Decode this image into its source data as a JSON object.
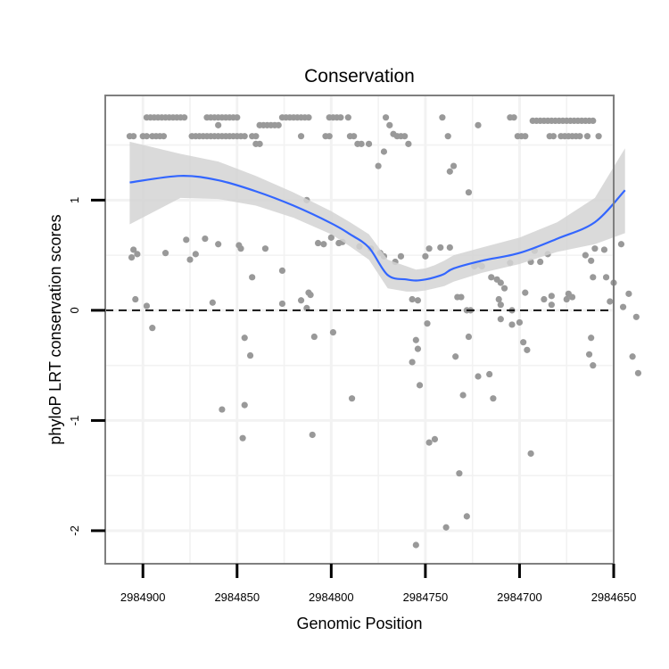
{
  "chart_data": {
    "type": "scatter",
    "title": "Conservation",
    "xlabel": "Genomic Position",
    "ylabel": "phyloP LRT conservation scores",
    "x_reversed": true,
    "xlim": [
      2984920,
      2984650
    ],
    "ylim": [
      -2.3,
      1.95
    ],
    "x_ticks": [
      2984900,
      2984850,
      2984800,
      2984750,
      2984700,
      2984650
    ],
    "y_ticks": [
      -2,
      -1,
      0,
      1
    ],
    "grid": true,
    "reference_line": {
      "y": 0,
      "style": "dashed"
    },
    "colors": {
      "points": "#999999",
      "smooth_line": "#3366FF",
      "ribbon": "#d3d3d3",
      "panel_border": "#7f7f7f",
      "grid": "#f2f2f2"
    },
    "series": [
      {
        "type": "points",
        "points": [
          [
            2984907,
            1.58
          ],
          [
            2984905,
            1.58
          ],
          [
            2984898,
            1.75
          ],
          [
            2984896,
            1.75
          ],
          [
            2984894,
            1.75
          ],
          [
            2984892,
            1.75
          ],
          [
            2984890,
            1.75
          ],
          [
            2984888,
            1.75
          ],
          [
            2984886,
            1.75
          ],
          [
            2984884,
            1.75
          ],
          [
            2984882,
            1.75
          ],
          [
            2984880,
            1.75
          ],
          [
            2984878,
            1.75
          ],
          [
            2984900,
            1.58
          ],
          [
            2984898,
            1.58
          ],
          [
            2984895,
            1.58
          ],
          [
            2984893,
            1.58
          ],
          [
            2984891,
            1.58
          ],
          [
            2984889,
            1.58
          ],
          [
            2984874,
            1.58
          ],
          [
            2984872,
            1.58
          ],
          [
            2984870,
            1.58
          ],
          [
            2984868,
            1.58
          ],
          [
            2984866,
            1.58
          ],
          [
            2984864,
            1.58
          ],
          [
            2984862,
            1.58
          ],
          [
            2984860,
            1.58
          ],
          [
            2984858,
            1.58
          ],
          [
            2984856,
            1.58
          ],
          [
            2984854,
            1.58
          ],
          [
            2984852,
            1.58
          ],
          [
            2984850,
            1.58
          ],
          [
            2984848,
            1.58
          ],
          [
            2984846,
            1.58
          ],
          [
            2984860,
            1.68
          ],
          [
            2984866,
            1.75
          ],
          [
            2984864,
            1.75
          ],
          [
            2984862,
            1.75
          ],
          [
            2984860,
            1.75
          ],
          [
            2984858,
            1.75
          ],
          [
            2984856,
            1.75
          ],
          [
            2984854,
            1.75
          ],
          [
            2984852,
            1.75
          ],
          [
            2984850,
            1.75
          ],
          [
            2984838,
            1.68
          ],
          [
            2984836,
            1.68
          ],
          [
            2984834,
            1.68
          ],
          [
            2984832,
            1.68
          ],
          [
            2984830,
            1.68
          ],
          [
            2984828,
            1.68
          ],
          [
            2984826,
            1.75
          ],
          [
            2984824,
            1.75
          ],
          [
            2984822,
            1.75
          ],
          [
            2984820,
            1.75
          ],
          [
            2984818,
            1.75
          ],
          [
            2984816,
            1.75
          ],
          [
            2984814,
            1.75
          ],
          [
            2984812,
            1.75
          ],
          [
            2984842,
            1.58
          ],
          [
            2984840,
            1.58
          ],
          [
            2984840,
            1.51
          ],
          [
            2984838,
            1.51
          ],
          [
            2984816,
            1.58
          ],
          [
            2984801,
            1.75
          ],
          [
            2984799,
            1.75
          ],
          [
            2984797,
            1.75
          ],
          [
            2984795,
            1.75
          ],
          [
            2984791,
            1.75
          ],
          [
            2984803,
            1.58
          ],
          [
            2984801,
            1.58
          ],
          [
            2984790,
            1.58
          ],
          [
            2984788,
            1.58
          ],
          [
            2984786,
            1.51
          ],
          [
            2984784,
            1.51
          ],
          [
            2984780,
            1.51
          ],
          [
            2984771,
            1.75
          ],
          [
            2984769,
            1.68
          ],
          [
            2984767,
            1.6
          ],
          [
            2984765,
            1.58
          ],
          [
            2984763,
            1.58
          ],
          [
            2984761,
            1.58
          ],
          [
            2984759,
            1.51
          ],
          [
            2984772,
            1.44
          ],
          [
            2984775,
            1.31
          ],
          [
            2984741,
            1.75
          ],
          [
            2984738,
            1.58
          ],
          [
            2984705,
            1.75
          ],
          [
            2984703,
            1.75
          ],
          [
            2984701,
            1.58
          ],
          [
            2984699,
            1.58
          ],
          [
            2984697,
            1.58
          ],
          [
            2984693,
            1.72
          ],
          [
            2984691,
            1.72
          ],
          [
            2984689,
            1.72
          ],
          [
            2984687,
            1.72
          ],
          [
            2984685,
            1.72
          ],
          [
            2984683,
            1.72
          ],
          [
            2984681,
            1.72
          ],
          [
            2984679,
            1.72
          ],
          [
            2984677,
            1.72
          ],
          [
            2984675,
            1.72
          ],
          [
            2984673,
            1.72
          ],
          [
            2984671,
            1.72
          ],
          [
            2984669,
            1.72
          ],
          [
            2984667,
            1.72
          ],
          [
            2984665,
            1.72
          ],
          [
            2984663,
            1.72
          ],
          [
            2984661,
            1.72
          ],
          [
            2984684,
            1.58
          ],
          [
            2984682,
            1.58
          ],
          [
            2984678,
            1.58
          ],
          [
            2984676,
            1.58
          ],
          [
            2984674,
            1.58
          ],
          [
            2984672,
            1.58
          ],
          [
            2984670,
            1.58
          ],
          [
            2984668,
            1.58
          ],
          [
            2984664,
            1.58
          ],
          [
            2984658,
            1.58
          ],
          [
            2984722,
            1.68
          ],
          [
            2984737,
            1.26
          ],
          [
            2984735,
            1.31
          ],
          [
            2984727,
            1.07
          ],
          [
            2984906,
            0.48
          ],
          [
            2984905,
            0.55
          ],
          [
            2984903,
            0.51
          ],
          [
            2984904,
            0.1
          ],
          [
            2984898,
            0.04
          ],
          [
            2984895,
            -0.16
          ],
          [
            2984888,
            0.52
          ],
          [
            2984877,
            0.64
          ],
          [
            2984875,
            0.46
          ],
          [
            2984872,
            0.51
          ],
          [
            2984867,
            0.65
          ],
          [
            2984860,
            0.6
          ],
          [
            2984863,
            0.07
          ],
          [
            2984849,
            0.59
          ],
          [
            2984848,
            0.56
          ],
          [
            2984846,
            -0.25
          ],
          [
            2984843,
            -0.41
          ],
          [
            2984846,
            -0.86
          ],
          [
            2984847,
            -1.16
          ],
          [
            2984842,
            0.3
          ],
          [
            2984835,
            0.56
          ],
          [
            2984826,
            0.36
          ],
          [
            2984826,
            0.06
          ],
          [
            2984807,
            0.61
          ],
          [
            2984804,
            0.6
          ],
          [
            2984812,
            0.16
          ],
          [
            2984816,
            0.09
          ],
          [
            2984813,
            1.0
          ],
          [
            2984811,
            0.14
          ],
          [
            2984809,
            -0.24
          ],
          [
            2984800,
            0.66
          ],
          [
            2984799,
            -0.2
          ],
          [
            2984796,
            0.61
          ],
          [
            2984794,
            0.62
          ],
          [
            2984789,
            -0.8
          ],
          [
            2984785,
            0.58
          ],
          [
            2984779,
            0.56
          ],
          [
            2984774,
            0.52
          ],
          [
            2984772,
            0.49
          ],
          [
            2984766,
            0.44
          ],
          [
            2984763,
            0.49
          ],
          [
            2984757,
            0.1
          ],
          [
            2984754,
            0.09
          ],
          [
            2984750,
            0.49
          ],
          [
            2984748,
            0.56
          ],
          [
            2984742,
            0.57
          ],
          [
            2984737,
            0.57
          ],
          [
            2984757,
            -0.47
          ],
          [
            2984755,
            -0.27
          ],
          [
            2984754,
            -0.35
          ],
          [
            2984753,
            -0.68
          ],
          [
            2984749,
            -0.12
          ],
          [
            2984748,
            -1.2
          ],
          [
            2984733,
            0.12
          ],
          [
            2984731,
            0.12
          ],
          [
            2984728,
            0.0
          ],
          [
            2984726,
            0.0
          ],
          [
            2984724,
            0.4
          ],
          [
            2984722,
            0.42
          ],
          [
            2984720,
            0.4
          ],
          [
            2984715,
            0.3
          ],
          [
            2984712,
            0.28
          ],
          [
            2984710,
            0.25
          ],
          [
            2984708,
            0.2
          ],
          [
            2984711,
            0.1
          ],
          [
            2984705,
            0.43
          ],
          [
            2984734,
            -0.42
          ],
          [
            2984730,
            -0.77
          ],
          [
            2984727,
            -0.24
          ],
          [
            2984722,
            -0.6
          ],
          [
            2984716,
            -0.58
          ],
          [
            2984714,
            -0.8
          ],
          [
            2984710,
            0.05
          ],
          [
            2984704,
            0.0
          ],
          [
            2984700,
            -0.11
          ],
          [
            2984698,
            -0.29
          ],
          [
            2984696,
            -0.36
          ],
          [
            2984697,
            0.16
          ],
          [
            2984694,
            0.44
          ],
          [
            2984692,
            0.54
          ],
          [
            2984689,
            0.44
          ],
          [
            2984685,
            0.51
          ],
          [
            2984687,
            0.1
          ],
          [
            2984683,
            0.13
          ],
          [
            2984674,
            0.15
          ],
          [
            2984672,
            0.12
          ],
          [
            2984665,
            0.5
          ],
          [
            2984662,
            0.45
          ],
          [
            2984660,
            0.56
          ],
          [
            2984655,
            0.55
          ],
          [
            2984654,
            0.3
          ],
          [
            2984650,
            0.25
          ],
          [
            2984646,
            0.6
          ],
          [
            2984642,
            0.15
          ],
          [
            2984640,
            -0.42
          ],
          [
            2984638,
            -0.06
          ],
          [
            2984637,
            -0.57
          ],
          [
            2984645,
            0.03
          ],
          [
            2984652,
            0.08
          ],
          [
            2984662,
            -0.25
          ],
          [
            2984663,
            -0.4
          ],
          [
            2984710,
            -0.08
          ],
          [
            2984704,
            -0.13
          ],
          [
            2984810,
            -1.13
          ],
          [
            2984813,
            0.02
          ],
          [
            2984858,
            -0.9
          ],
          [
            2984745,
            -1.17
          ],
          [
            2984739,
            -1.97
          ],
          [
            2984732,
            -1.48
          ],
          [
            2984728,
            -1.87
          ],
          [
            2984755,
            -2.13
          ],
          [
            2984694,
            -1.3
          ],
          [
            2984661,
            -0.5
          ],
          [
            2984661,
            0.3
          ],
          [
            2984675,
            0.1
          ],
          [
            2984683,
            0.05
          ]
        ]
      },
      {
        "type": "smooth",
        "x": [
          2984907,
          2984880,
          2984860,
          2984840,
          2984820,
          2984800,
          2984790,
          2984780,
          2984770,
          2984760,
          2984755,
          2984750,
          2984745,
          2984740,
          2984735,
          2984720,
          2984700,
          2984680,
          2984660,
          2984644
        ],
        "y": [
          1.16,
          1.22,
          1.18,
          1.08,
          0.95,
          0.79,
          0.69,
          0.57,
          0.32,
          0.28,
          0.27,
          0.28,
          0.3,
          0.33,
          0.38,
          0.45,
          0.52,
          0.65,
          0.8,
          1.09
        ],
        "lower": [
          0.78,
          1.02,
          1.01,
          0.95,
          0.84,
          0.69,
          0.58,
          0.46,
          0.2,
          0.17,
          0.17,
          0.18,
          0.2,
          0.22,
          0.26,
          0.34,
          0.42,
          0.53,
          0.6,
          0.7
        ],
        "upper": [
          1.53,
          1.42,
          1.35,
          1.22,
          1.07,
          0.9,
          0.8,
          0.69,
          0.46,
          0.4,
          0.37,
          0.38,
          0.41,
          0.45,
          0.5,
          0.57,
          0.66,
          0.8,
          1.02,
          1.47
        ]
      }
    ]
  }
}
